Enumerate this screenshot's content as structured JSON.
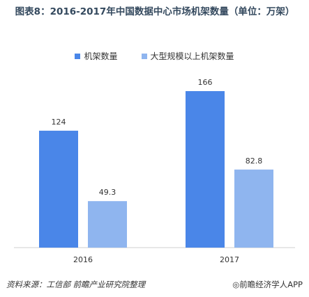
{
  "title": "图表8：2016-2017年中国数据中心市场机架数量（单位：万架）",
  "legend": [
    {
      "label": "机架数量",
      "color": "#4a86e8"
    },
    {
      "label": "大型规模以上机架数量",
      "color": "#8fb5ef"
    }
  ],
  "source": "资料来源：工信部 前瞻产业研究院整理",
  "brand": "◎前瞻经济学人APP",
  "chart_data": {
    "type": "bar",
    "title": "图表8：2016-2017年中国数据中心市场机架数量（单位：万架）",
    "categories": [
      "2016",
      "2017"
    ],
    "series": [
      {
        "name": "机架数量",
        "values": [
          124,
          166
        ],
        "color": "#4a86e8"
      },
      {
        "name": "大型规模以上机架数量",
        "values": [
          49.3,
          82.8
        ],
        "color": "#8fb5ef"
      }
    ],
    "ylim": [
      0,
      180
    ],
    "grid": false,
    "legend_position": "top"
  }
}
